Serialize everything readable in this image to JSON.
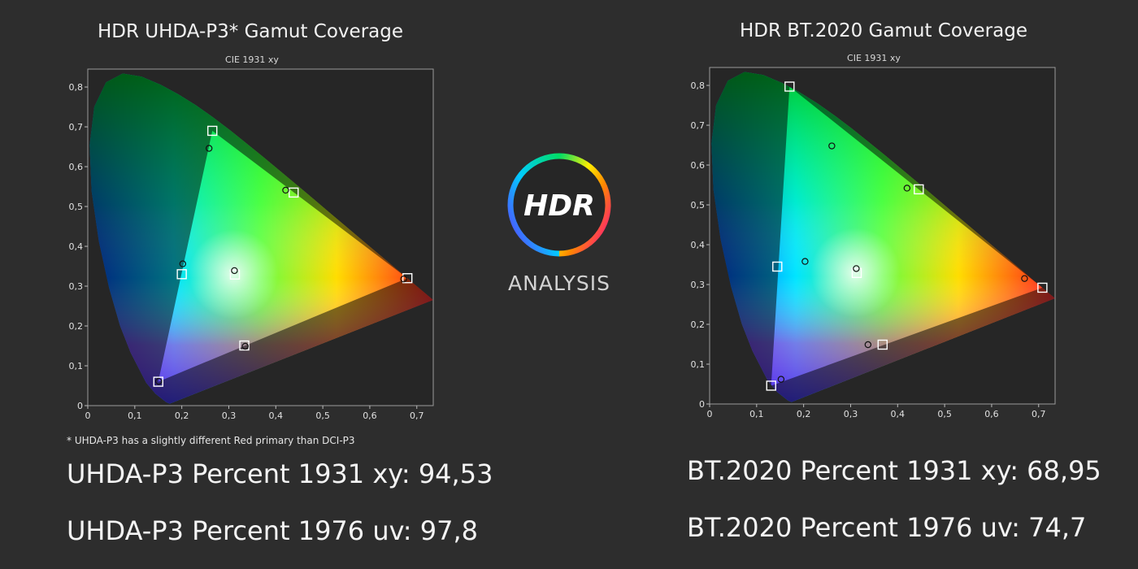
{
  "chart_data": [
    {
      "type": "scatter",
      "title": "HDR UHDA-P3* Gamut Coverage",
      "subtitle": "CIE 1931 xy",
      "xlim": [
        0,
        0.735
      ],
      "ylim": [
        0,
        0.845
      ],
      "x_ticks": [
        "0",
        "0,1",
        "0,2",
        "0,3",
        "0,4",
        "0,5",
        "0,6",
        "0,7"
      ],
      "y_ticks": [
        "0",
        "0,1",
        "0,2",
        "0,3",
        "0,4",
        "0,5",
        "0,6",
        "0,7",
        "0,8"
      ],
      "target_gamut": [
        [
          0.68,
          0.32
        ],
        [
          0.265,
          0.69
        ],
        [
          0.15,
          0.06
        ]
      ],
      "target_points": [
        [
          0.68,
          0.32
        ],
        [
          0.265,
          0.69
        ],
        [
          0.15,
          0.06
        ],
        [
          0.2,
          0.33
        ],
        [
          0.313,
          0.329
        ],
        [
          0.438,
          0.535
        ],
        [
          0.333,
          0.151
        ]
      ],
      "measured_points": [
        [
          0.672,
          0.318
        ],
        [
          0.258,
          0.646
        ],
        [
          0.151,
          0.061
        ],
        [
          0.202,
          0.356
        ],
        [
          0.312,
          0.339
        ],
        [
          0.421,
          0.541
        ],
        [
          0.335,
          0.149
        ]
      ],
      "footnote": "* UHDA-P3 has a slightly different Red primary than DCI-P3",
      "stats": [
        "UHDA-P3 Percent 1931 xy: 94,53",
        "UHDA-P3 Percent 1976 uv: 97,8"
      ]
    },
    {
      "type": "scatter",
      "title": "HDR BT.2020  Gamut Coverage",
      "subtitle": "CIE 1931 xy",
      "xlim": [
        0,
        0.735
      ],
      "ylim": [
        0,
        0.845
      ],
      "x_ticks": [
        "0",
        "0,1",
        "0,2",
        "0,3",
        "0,4",
        "0,5",
        "0,6",
        "0,7"
      ],
      "y_ticks": [
        "0",
        "0,1",
        "0,2",
        "0,3",
        "0,4",
        "0,5",
        "0,6",
        "0,7",
        "0,8"
      ],
      "target_gamut": [
        [
          0.708,
          0.292
        ],
        [
          0.17,
          0.797
        ],
        [
          0.131,
          0.046
        ]
      ],
      "target_points": [
        [
          0.708,
          0.292
        ],
        [
          0.17,
          0.797
        ],
        [
          0.131,
          0.046
        ],
        [
          0.144,
          0.345
        ],
        [
          0.313,
          0.329
        ],
        [
          0.445,
          0.539
        ],
        [
          0.368,
          0.149
        ]
      ],
      "measured_points": [
        [
          0.67,
          0.315
        ],
        [
          0.26,
          0.648
        ],
        [
          0.152,
          0.062
        ],
        [
          0.203,
          0.358
        ],
        [
          0.312,
          0.34
        ],
        [
          0.42,
          0.542
        ],
        [
          0.337,
          0.149
        ]
      ],
      "stats": [
        "BT.2020 Percent 1931 xy: 68,95",
        "BT.2020 Percent 1976 uv: 74,7"
      ]
    }
  ],
  "logo": {
    "mark": "HDR",
    "word": "ANALYSIS"
  },
  "colors": {
    "background": "#2d2d2d",
    "plot_bg": "#262626",
    "ring": [
      "#ff00aa",
      "#ff8800",
      "#ffee00",
      "#00dd55",
      "#00ccff",
      "#5533ff"
    ]
  }
}
